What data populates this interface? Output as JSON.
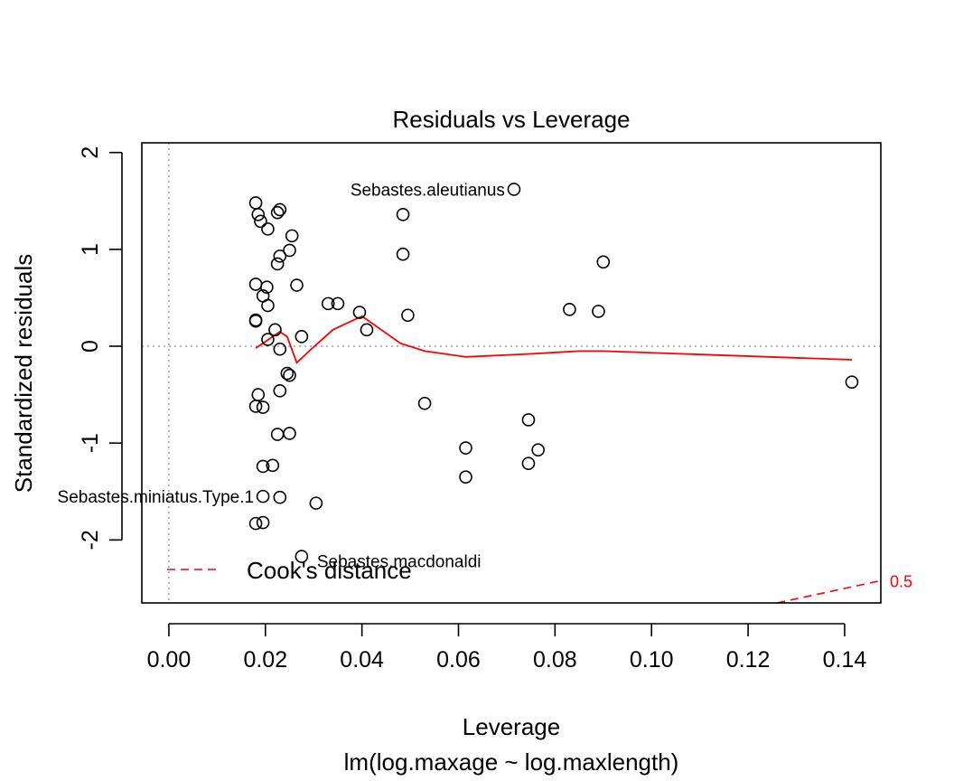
{
  "chart_data": {
    "type": "scatter",
    "title": "Residuals vs Leverage",
    "xlabel": "Leverage",
    "subtitle": "lm(log.maxage ~ log.maxlength)",
    "ylabel": "Standardized residuals",
    "xlim": [
      -0.0056,
      0.1475
    ],
    "ylim": [
      -2.65,
      2.1
    ],
    "xticks": [
      "0.00",
      "0.02",
      "0.04",
      "0.06",
      "0.08",
      "0.10",
      "0.12",
      "0.14"
    ],
    "xtick_values": [
      0,
      0.02,
      0.04,
      0.06,
      0.08,
      0.1,
      0.12,
      0.14
    ],
    "yticks": [
      "-2",
      "-1",
      "0",
      "1",
      "2"
    ],
    "ytick_values": [
      -2,
      -1,
      0,
      1,
      2
    ],
    "reference_lines": {
      "h": 0,
      "v": 0
    },
    "points": [
      [
        0.018,
        1.48
      ],
      [
        0.0185,
        1.36
      ],
      [
        0.019,
        1.29
      ],
      [
        0.0225,
        1.38
      ],
      [
        0.023,
        1.41
      ],
      [
        0.0205,
        1.21
      ],
      [
        0.0255,
        1.14
      ],
      [
        0.025,
        0.99
      ],
      [
        0.023,
        0.93
      ],
      [
        0.0225,
        0.85
      ],
      [
        0.018,
        0.64
      ],
      [
        0.0203,
        0.61
      ],
      [
        0.0195,
        0.52
      ],
      [
        0.0205,
        0.42
      ],
      [
        0.0265,
        0.63
      ],
      [
        0.033,
        0.44
      ],
      [
        0.035,
        0.44
      ],
      [
        0.0395,
        0.35
      ],
      [
        0.018,
        0.27
      ],
      [
        0.018,
        0.26
      ],
      [
        0.022,
        0.17
      ],
      [
        0.041,
        0.17
      ],
      [
        0.0275,
        0.1
      ],
      [
        0.0205,
        0.07
      ],
      [
        0.023,
        -0.03
      ],
      [
        0.0245,
        -0.28
      ],
      [
        0.025,
        -0.3
      ],
      [
        0.023,
        -0.46
      ],
      [
        0.0185,
        -0.5
      ],
      [
        0.018,
        -0.62
      ],
      [
        0.0195,
        -0.63
      ],
      [
        0.0225,
        -0.91
      ],
      [
        0.025,
        -0.9
      ],
      [
        0.0195,
        -1.24
      ],
      [
        0.0215,
        -1.23
      ],
      [
        0.0195,
        -1.55
      ],
      [
        0.023,
        -1.56
      ],
      [
        0.0305,
        -1.62
      ],
      [
        0.018,
        -1.83
      ],
      [
        0.0195,
        -1.82
      ],
      [
        0.0275,
        -2.17
      ],
      [
        0.0485,
        1.36
      ],
      [
        0.0485,
        0.95
      ],
      [
        0.0715,
        1.62
      ],
      [
        0.0495,
        0.32
      ],
      [
        0.053,
        -0.59
      ],
      [
        0.0615,
        -1.05
      ],
      [
        0.0615,
        -1.35
      ],
      [
        0.0745,
        -0.76
      ],
      [
        0.0745,
        -1.21
      ],
      [
        0.0765,
        -1.07
      ],
      [
        0.083,
        0.38
      ],
      [
        0.089,
        0.36
      ],
      [
        0.09,
        0.87
      ],
      [
        0.1415,
        -0.37
      ]
    ],
    "smoother": [
      [
        0.018,
        -0.02
      ],
      [
        0.023,
        0.15
      ],
      [
        0.0245,
        0.1
      ],
      [
        0.0265,
        -0.17
      ],
      [
        0.0295,
        -0.03
      ],
      [
        0.034,
        0.17
      ],
      [
        0.04,
        0.31
      ],
      [
        0.048,
        0.03
      ],
      [
        0.053,
        -0.05
      ],
      [
        0.0615,
        -0.11
      ],
      [
        0.0745,
        -0.08
      ],
      [
        0.085,
        -0.05
      ],
      [
        0.09,
        -0.05
      ],
      [
        0.1415,
        -0.14
      ]
    ],
    "cooks_contour": {
      "label": "0.5",
      "points": [
        [
          0.126,
          -2.65
        ],
        [
          0.1475,
          -2.42
        ]
      ]
    },
    "annotations": [
      {
        "text": "Sebastes.aleutianus",
        "x": 0.0715,
        "y": 1.62
      },
      {
        "text": "Sebastes.miniatus.Type.1",
        "x": 0.0195,
        "y": -1.55
      },
      {
        "text": "Sebastes.macdonaldi",
        "x": 0.0275,
        "y": -2.17
      }
    ],
    "legend": {
      "label": "Cook's distance",
      "position": "bottom-left"
    }
  }
}
